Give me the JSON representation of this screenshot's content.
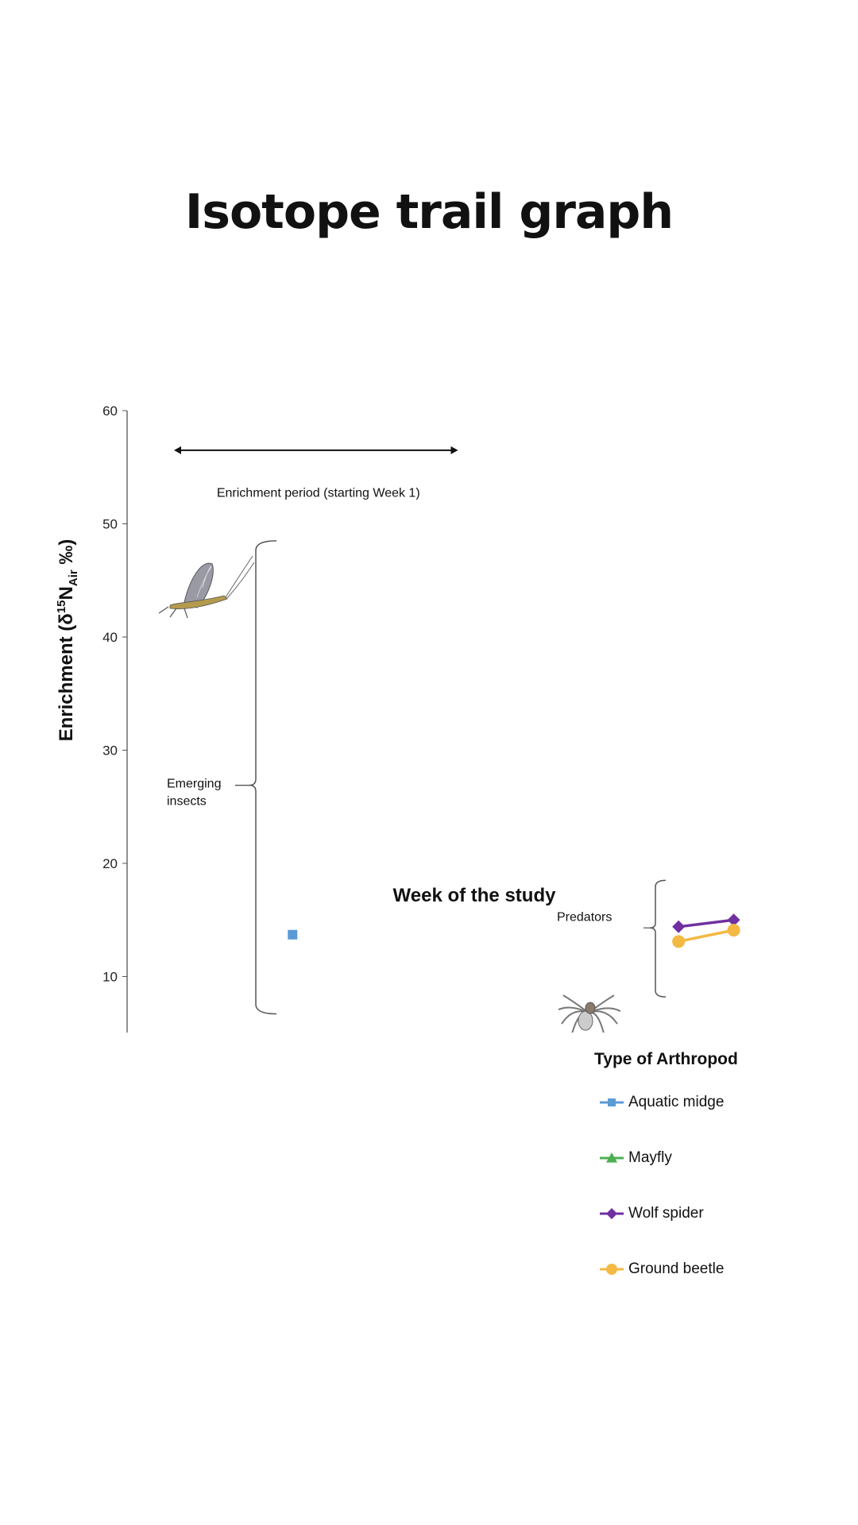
{
  "title": "Isotope trail graph",
  "chart_data": {
    "type": "line",
    "xlabel": "Week of the study",
    "ylabel": "Enrichment (δ15NAir ‰)",
    "ylabel_parts": {
      "main": "Enrichment (δ",
      "sup": "15",
      "n": "N",
      "sub": "Air",
      "end": " ‰)"
    },
    "xlim": [
      0,
      12
    ],
    "ylim": [
      0,
      60
    ],
    "xticks": [
      "0",
      "1",
      "2",
      "3",
      "4",
      "5",
      "6",
      "7",
      "8",
      "9",
      "10",
      "11",
      "12"
    ],
    "yticks": [
      "0",
      "10",
      "20",
      "30",
      "40",
      "50",
      "60"
    ],
    "grid": false,
    "legend_title": "Type of Arthropod",
    "legend_position": "bottom-right",
    "series": [
      {
        "name": "Aquatic midge",
        "color": "#5b9bd5",
        "marker": "square",
        "points": [
          [
            3,
            13.7
          ]
        ]
      },
      {
        "name": "Mayfly",
        "color": "#4caf50",
        "marker": "triangle",
        "points": []
      },
      {
        "name": "Wolf spider",
        "color": "#7030a0",
        "marker": "diamond",
        "points": [
          [
            10,
            14.4
          ],
          [
            11,
            15.0
          ]
        ]
      },
      {
        "name": "Ground beetle",
        "color": "#f4b942",
        "marker": "circle",
        "points": [
          [
            10,
            13.1
          ],
          [
            11,
            14.1
          ]
        ]
      }
    ],
    "annotations": {
      "enrichment_period": {
        "text": "Enrichment period (starting Week 1)",
        "from_week": 0.85,
        "to_week": 6.0
      },
      "emerging_insects": {
        "line1": "Emerging",
        "line2": "insects"
      },
      "predators": {
        "text": "Predators"
      }
    }
  }
}
